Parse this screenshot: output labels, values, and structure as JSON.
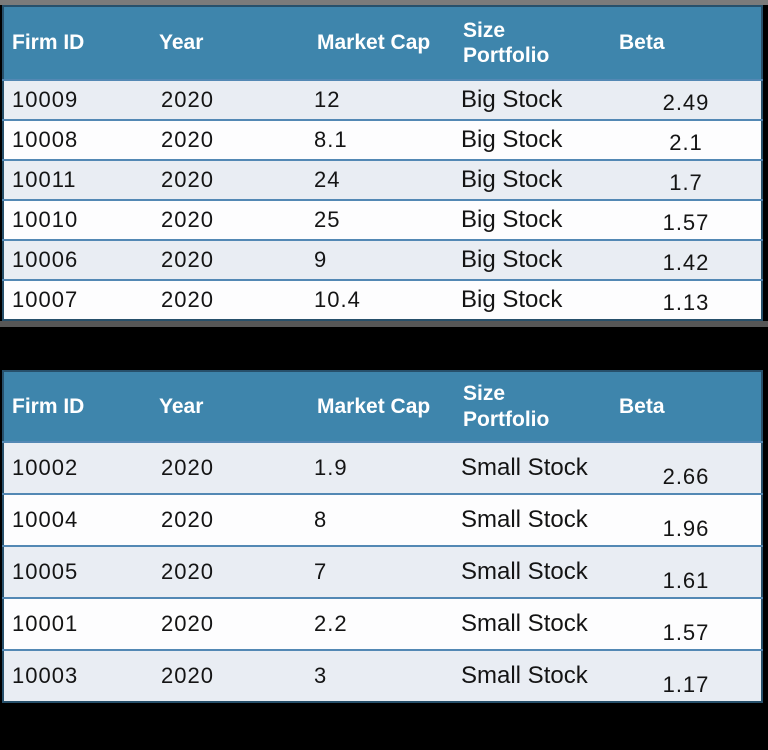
{
  "colors": {
    "page_background": "#000000",
    "top_bar": "#7b7b7b",
    "divider": "#575757",
    "header_bg": "#3e85ac",
    "header_text": "#ffffff",
    "row_alt": "#e9edf3",
    "row_white": "#fdfdfe",
    "row_border": "#5388b4",
    "cell_text": "#141414"
  },
  "chart_data": [
    {
      "type": "table",
      "columns": [
        "Firm ID",
        "Year",
        "Market Cap",
        "Size Portfolio",
        "Beta"
      ],
      "rows": [
        [
          "10009",
          "2020",
          "12",
          "Big Stock",
          "2.49"
        ],
        [
          "10008",
          "2020",
          "8.1",
          "Big Stock",
          "2.1"
        ],
        [
          "10011",
          "2020",
          "24",
          "Big Stock",
          "1.7"
        ],
        [
          "10010",
          "2020",
          "25",
          "Big Stock",
          "1.57"
        ],
        [
          "10006",
          "2020",
          "9",
          "Big Stock",
          "1.42"
        ],
        [
          "10007",
          "2020",
          "10.4",
          "Big Stock",
          "1.13"
        ]
      ]
    },
    {
      "type": "table",
      "columns": [
        "Firm ID",
        "Year",
        "Market Cap",
        "Size Portfolio",
        "Beta"
      ],
      "rows": [
        [
          "10002",
          "2020",
          "1.9",
          "Small Stock",
          "2.66"
        ],
        [
          "10004",
          "2020",
          "8",
          "Small Stock",
          "1.96"
        ],
        [
          "10005",
          "2020",
          "7",
          "Small Stock",
          "1.61"
        ],
        [
          "10001",
          "2020",
          "2.2",
          "Small Stock",
          "1.57"
        ],
        [
          "10003",
          "2020",
          "3",
          "Small Stock",
          "1.17"
        ]
      ]
    }
  ]
}
